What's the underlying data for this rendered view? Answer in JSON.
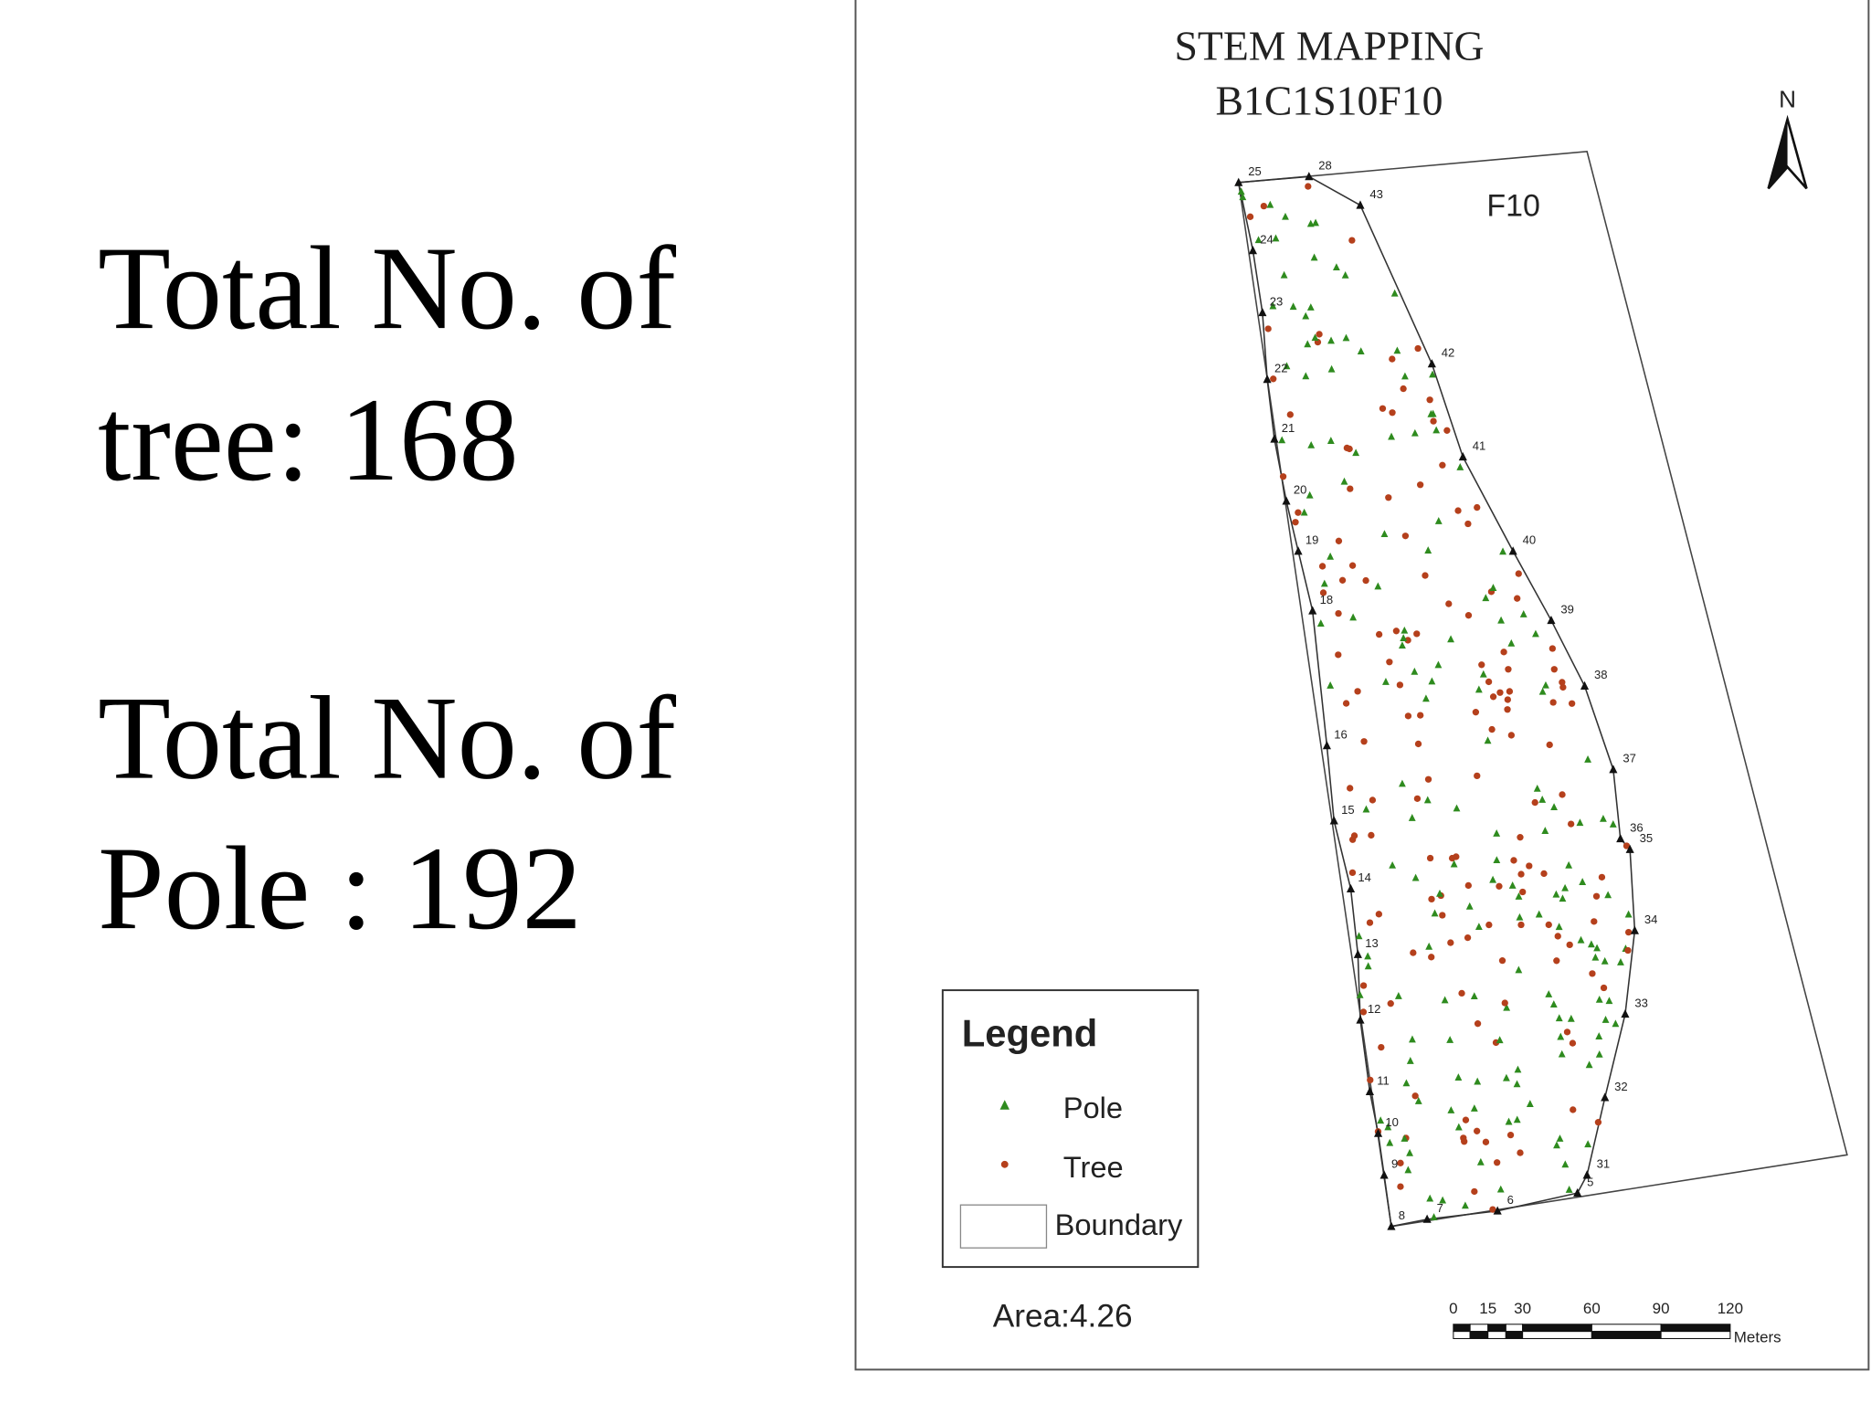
{
  "summary": {
    "tree_line_1": "Total No. of",
    "tree_line_2": "tree: 168",
    "pole_line_1": "Total No. of",
    "pole_line_2": "Pole : 192"
  },
  "map": {
    "title_1": "STEM MAPPING",
    "title_2": "B1C1S10F10",
    "north": "N",
    "block_label": "F10",
    "boundary_labels": [
      "25",
      "28",
      "43",
      "42",
      "41",
      "40",
      "39",
      "38",
      "37",
      "36",
      "35",
      "34",
      "33",
      "32",
      "31",
      "5",
      "6",
      "7",
      "8",
      "9",
      "10",
      "11",
      "12",
      "13",
      "14",
      "15",
      "16",
      "18",
      "19",
      "20",
      "21",
      "22",
      "23",
      "24"
    ],
    "legend": {
      "title": "Legend",
      "items": [
        "Pole",
        "Tree",
        "Boundary"
      ]
    },
    "area": "Area:4.26",
    "scale_bar": {
      "labels": [
        "0",
        "15",
        "30",
        "60",
        "90",
        "120"
      ],
      "unit": "Meters"
    }
  }
}
